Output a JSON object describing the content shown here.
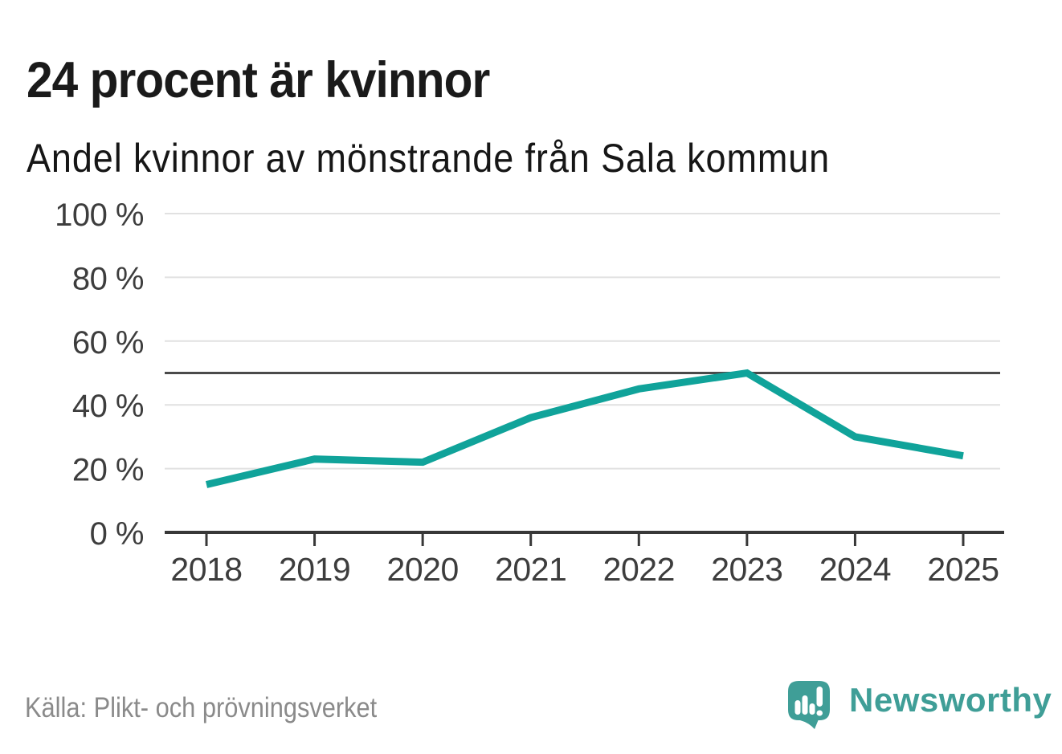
{
  "header": {
    "title": "24 procent är kvinnor",
    "subtitle": "Andel kvinnor av mönstrande från Sala kommun"
  },
  "footer": {
    "source": "Källa: Plikt- och prövningsverket",
    "brand": "Newsworthy"
  },
  "colors": {
    "background": "#FFFFFF",
    "line": "#10A39A",
    "brand": "#3F9E97",
    "grid": "#E1E1E1",
    "reference_line": "#4A4A4A",
    "axis": "#383838",
    "tick_label": "#3D3D3D",
    "title_text": "#1A1A1A",
    "subtitle_text": "#161616",
    "source_text": "#8A8A8A",
    "logo_mark": "#FFFFFF"
  },
  "chart_data": {
    "type": "line",
    "title": "24 procent är kvinnor",
    "subtitle": "Andel kvinnor av mönstrande från Sala kommun",
    "x": [
      2018,
      2019,
      2020,
      2021,
      2022,
      2023,
      2024,
      2025
    ],
    "series": [
      {
        "name": "Andel kvinnor av mönstrande",
        "values": [
          15,
          23,
          22,
          36,
          45,
          50,
          30,
          24
        ]
      }
    ],
    "unit": "%",
    "xlabel": "",
    "ylabel": "",
    "ylim": [
      0,
      100
    ],
    "yticks": [
      0,
      20,
      40,
      60,
      80,
      100
    ],
    "ytick_labels": [
      "0 %",
      "20 %",
      "40 %",
      "60 %",
      "80 %",
      "100 %"
    ],
    "reference_line": 50,
    "grid": true,
    "legend": false,
    "source": "Källa: Plikt- och prövningsverket"
  }
}
